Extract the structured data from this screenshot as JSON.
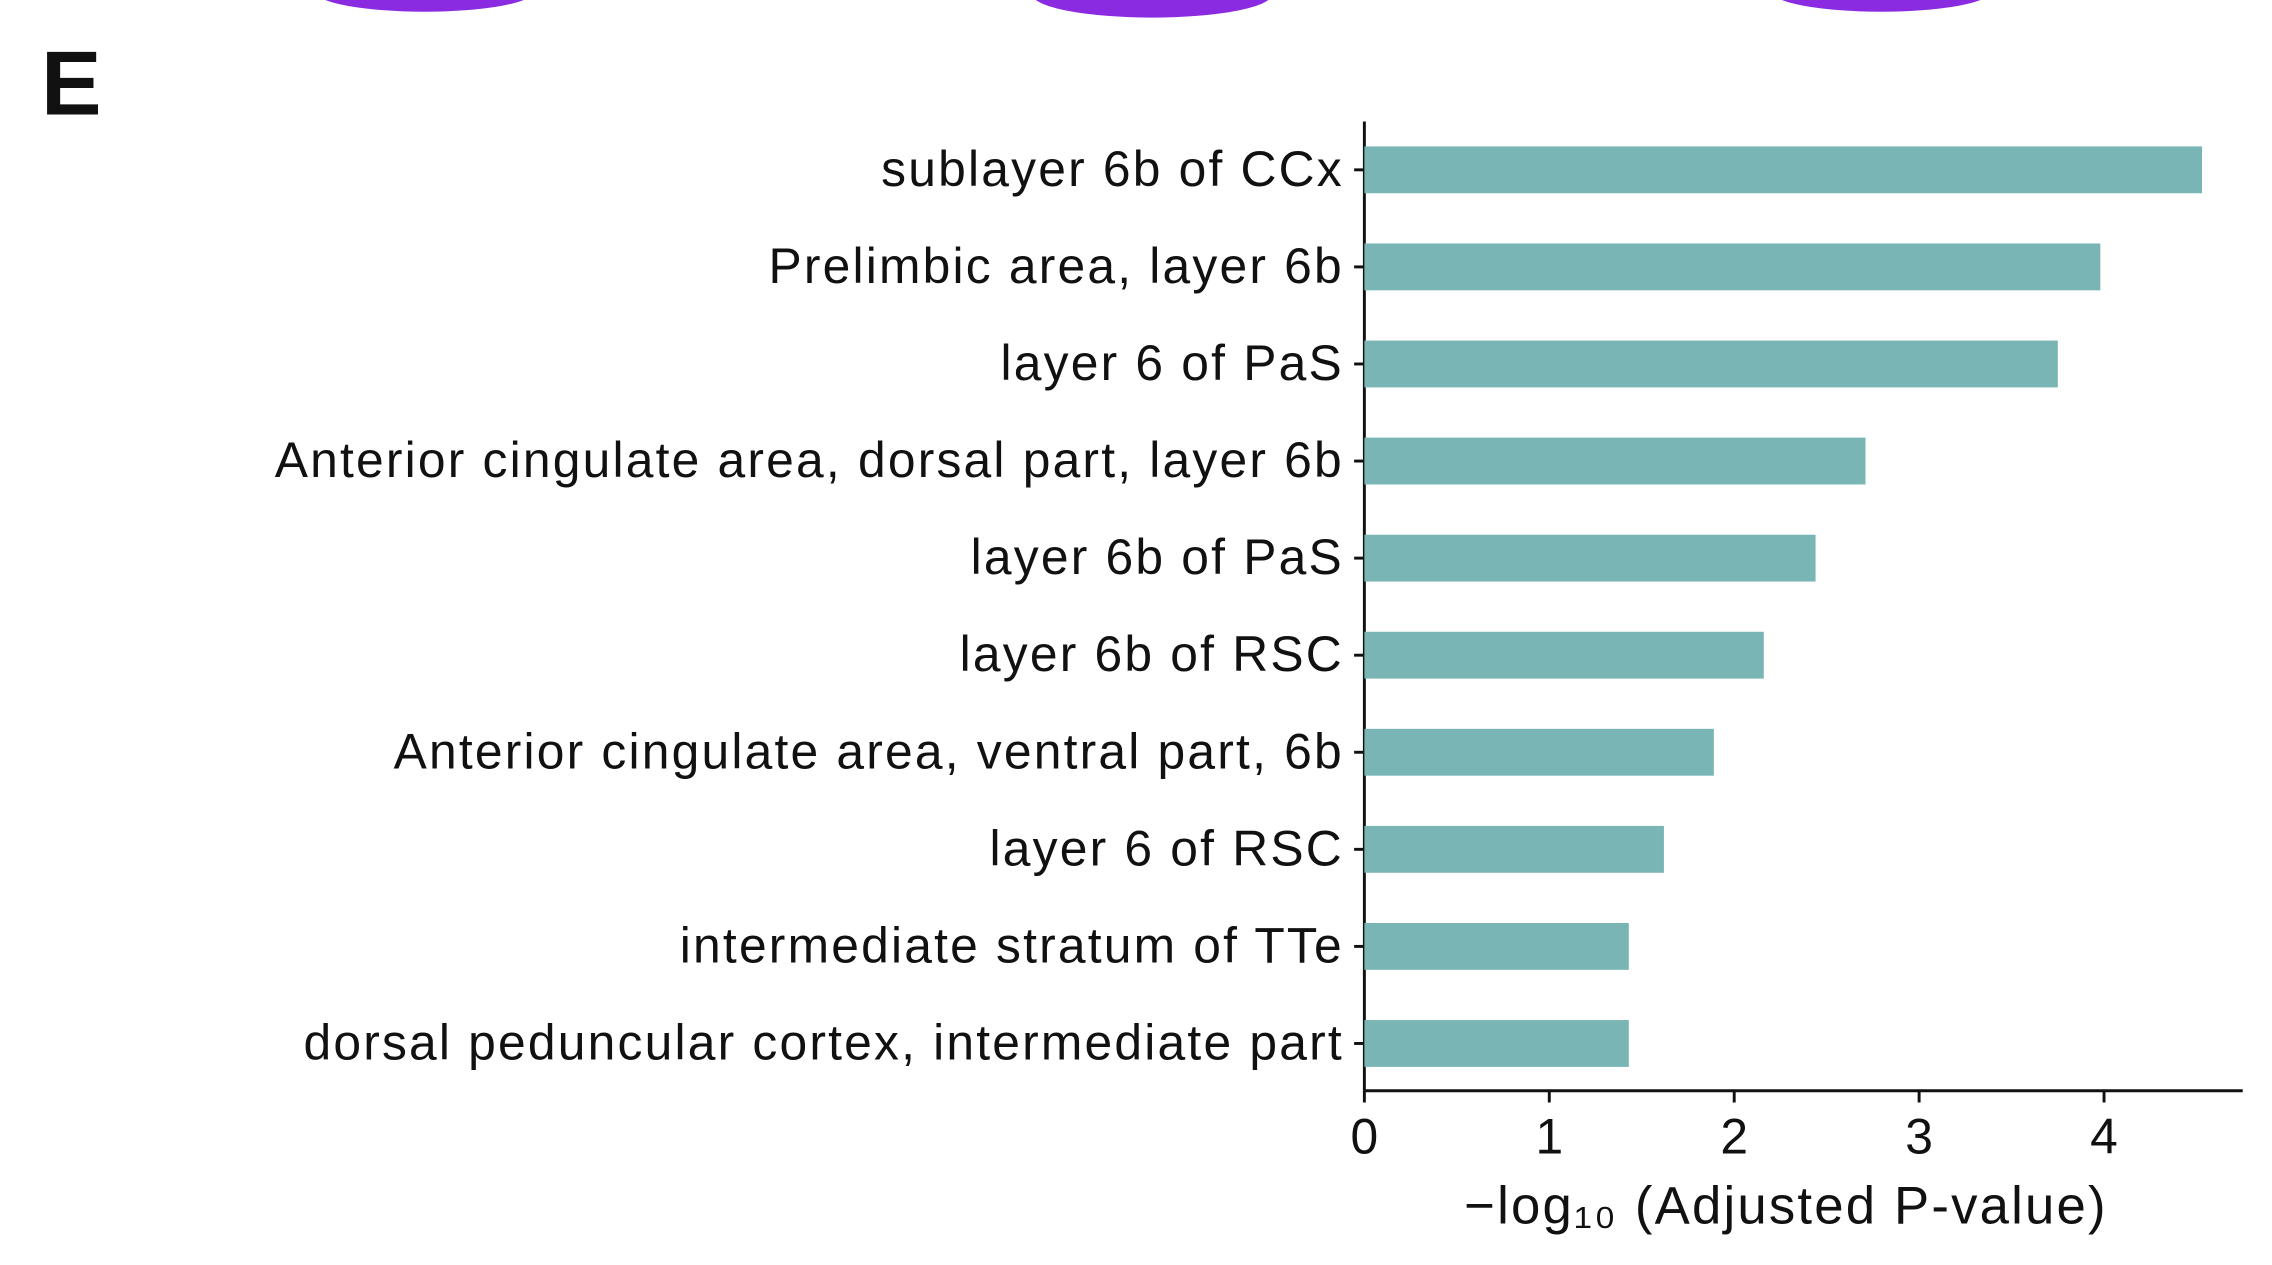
{
  "panel_label": "E",
  "chart_data": {
    "type": "barh",
    "xlabel": "−log₁₀ (Adjusted P-value)",
    "categories": [
      "sublayer 6b of CCx",
      "Prelimbic area, layer 6b",
      "layer 6 of PaS",
      "Anterior cingulate area, dorsal part, layer 6b",
      "layer 6b of PaS",
      "layer 6b of RSC",
      "Anterior cingulate area, ventral part, 6b",
      "layer 6 of RSC",
      "intermediate stratum of TTe",
      "dorsal peduncular cortex, intermediate part"
    ],
    "values": [
      4.53,
      3.98,
      3.75,
      2.71,
      2.44,
      2.16,
      1.89,
      1.62,
      1.43,
      1.43
    ],
    "color": "#7ab5b5",
    "xlim": [
      0,
      4.75
    ],
    "xticks": [
      0,
      1,
      2,
      3,
      4
    ],
    "grid": false
  }
}
